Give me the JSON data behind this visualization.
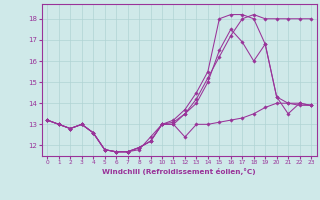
{
  "xlabel": "Windchill (Refroidissement éolien,°C)",
  "xlim": [
    -0.5,
    23.5
  ],
  "ylim": [
    11.5,
    18.7
  ],
  "yticks": [
    12,
    13,
    14,
    15,
    16,
    17,
    18
  ],
  "xticks": [
    0,
    1,
    2,
    3,
    4,
    5,
    6,
    7,
    8,
    9,
    10,
    11,
    12,
    13,
    14,
    15,
    16,
    17,
    18,
    19,
    20,
    21,
    22,
    23
  ],
  "bg_color": "#cfe9e9",
  "line_color": "#993399",
  "grid_color": "#b0d4d4",
  "series": [
    [
      13.2,
      13.0,
      12.8,
      13.0,
      12.6,
      11.8,
      11.7,
      11.7,
      11.8,
      12.4,
      13.0,
      13.0,
      12.4,
      13.0,
      13.0,
      13.1,
      13.2,
      13.3,
      13.5,
      13.8,
      14.0,
      14.0,
      13.9,
      13.9
    ],
    [
      13.2,
      13.0,
      12.8,
      13.0,
      12.6,
      11.8,
      11.7,
      11.7,
      11.9,
      12.2,
      13.0,
      13.0,
      13.5,
      14.2,
      15.2,
      16.2,
      17.2,
      18.0,
      18.2,
      18.0,
      18.0,
      18.0,
      18.0,
      18.0
    ],
    [
      13.2,
      13.0,
      12.8,
      13.0,
      12.6,
      11.8,
      11.7,
      11.7,
      11.9,
      12.2,
      13.0,
      13.2,
      13.7,
      14.5,
      15.5,
      18.0,
      18.2,
      18.2,
      18.0,
      16.8,
      14.3,
      14.0,
      14.0,
      13.9
    ],
    [
      13.2,
      13.0,
      12.8,
      13.0,
      12.6,
      11.8,
      11.7,
      11.7,
      11.9,
      12.2,
      13.0,
      13.1,
      13.5,
      14.0,
      15.0,
      16.5,
      17.5,
      16.9,
      16.0,
      16.8,
      14.3,
      13.5,
      14.0,
      13.9
    ]
  ]
}
